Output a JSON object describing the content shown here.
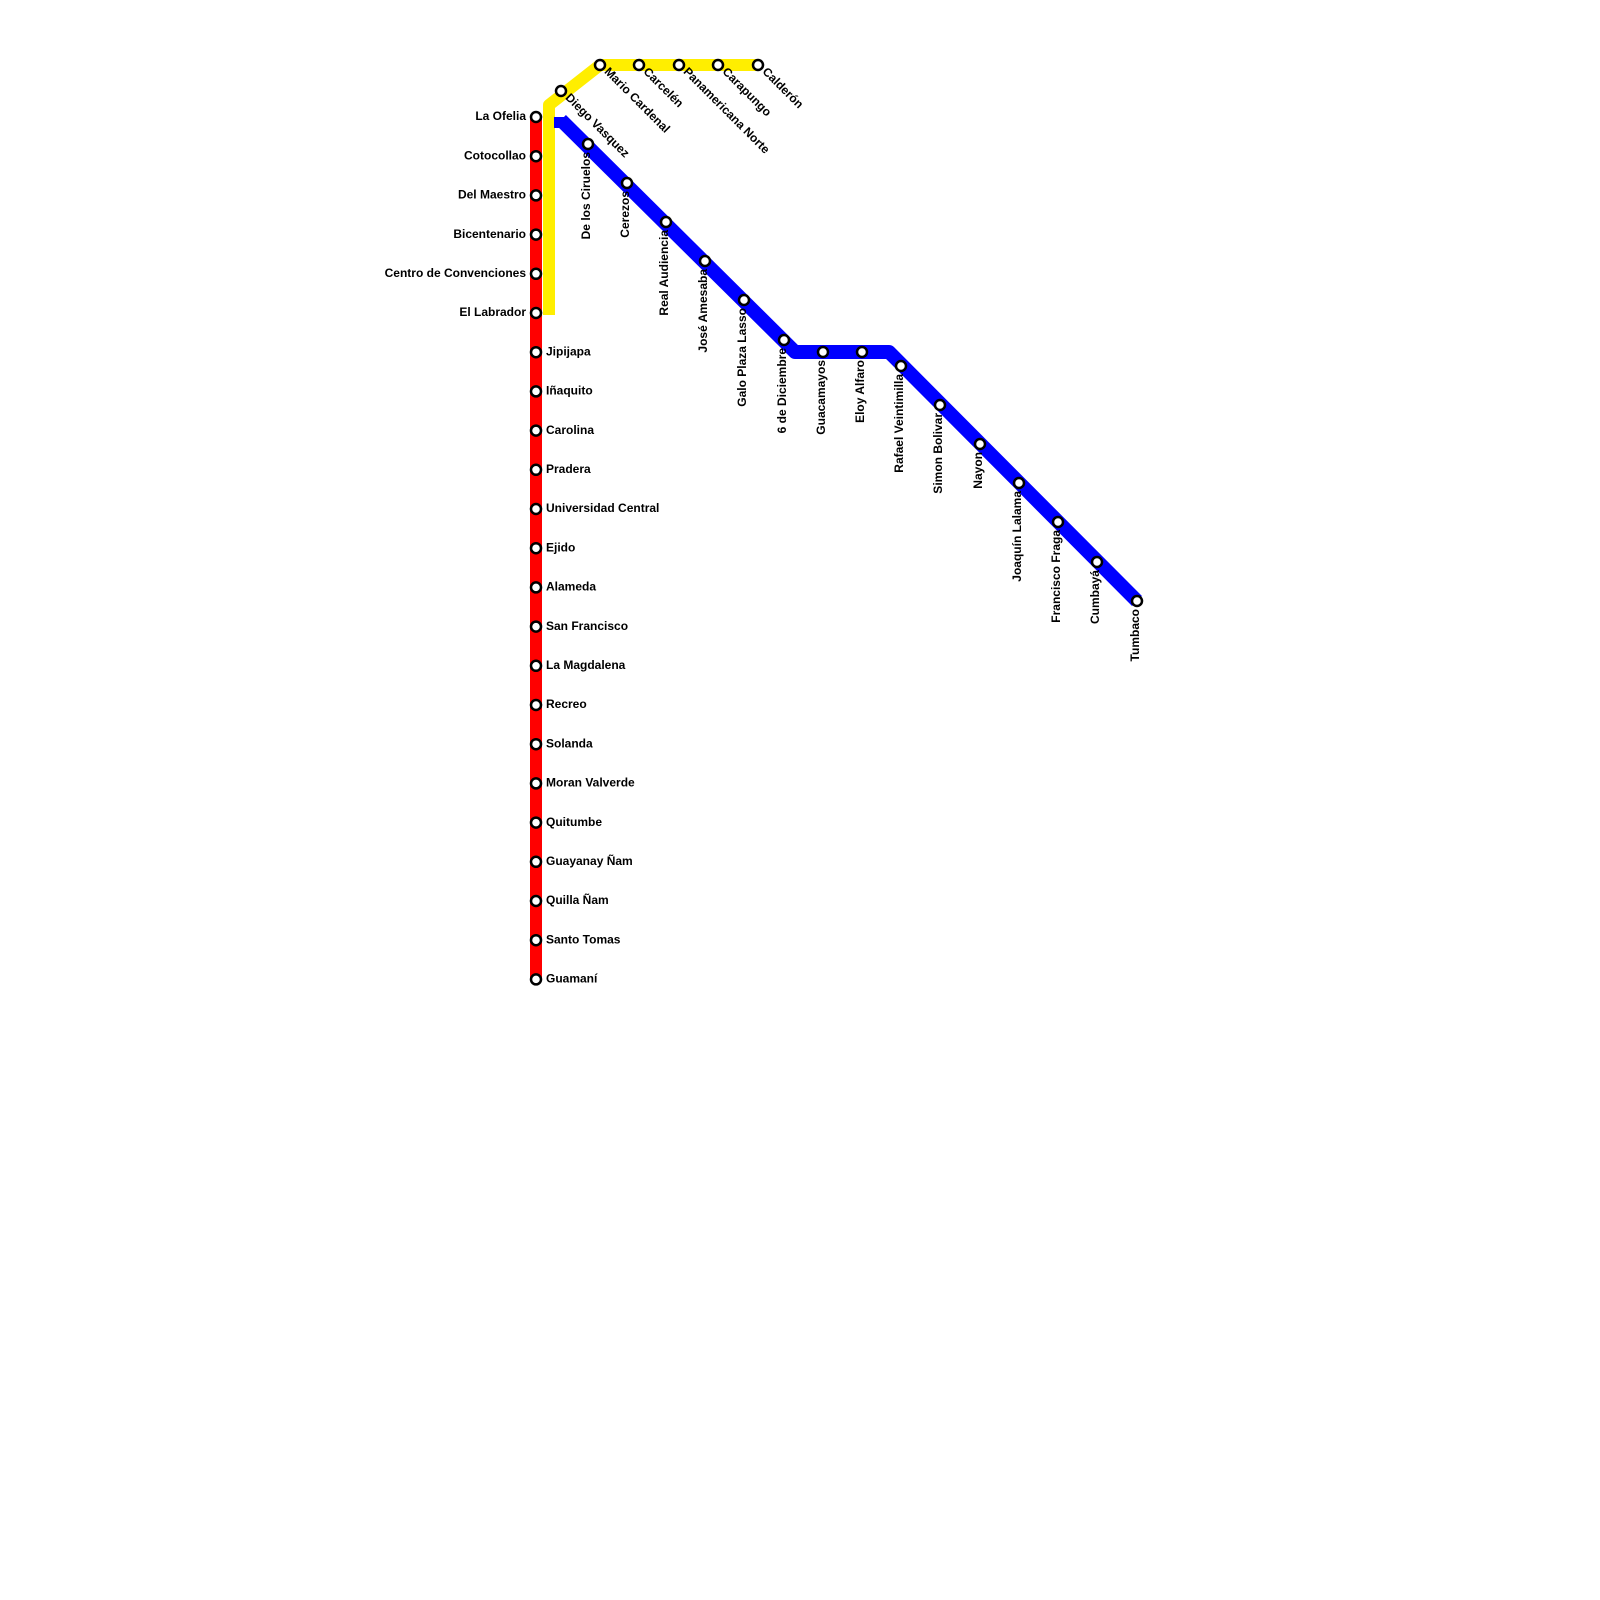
{
  "lines": [
    {
      "color": "#ff0000",
      "stations": [
        "La Ofelia",
        "Cotocollao",
        "Del Maestro",
        "Bicentenario",
        "Centro de Convenciones",
        "El Labrador",
        "Jipijapa",
        "Iñaquito",
        "Carolina",
        "Pradera",
        "Universidad Central",
        "Ejido",
        "Alameda",
        "San Francisco",
        "La Magdalena",
        "Recreo",
        "Solanda",
        "Moran Valverde",
        "Quitumbe",
        "Guayanay Ñam",
        "Quilla Ñam",
        "Santo Tomas",
        "Guamaní"
      ]
    },
    {
      "color": "#ffee00",
      "stations": [
        "Diego Vasquez",
        "Mario Cardenal",
        "Carcelén",
        "Panamericana Norte",
        "Carapungo",
        "Calderón"
      ]
    },
    {
      "color": "#0000ff",
      "stations": [
        "De los Ciruelos",
        "Cerezos",
        "Real Audiencia",
        "José Amesaba",
        "Galo Plaza Lasso",
        "6 de Diciembre",
        "Guacamayos",
        "Eloy Alfaro",
        "Rafael Veintimilla",
        "Simon Bolivar",
        "Nayon",
        "Joaquín Lalama",
        "Francisco Fraga",
        "Cumbayá",
        "Tumbaco"
      ]
    }
  ]
}
